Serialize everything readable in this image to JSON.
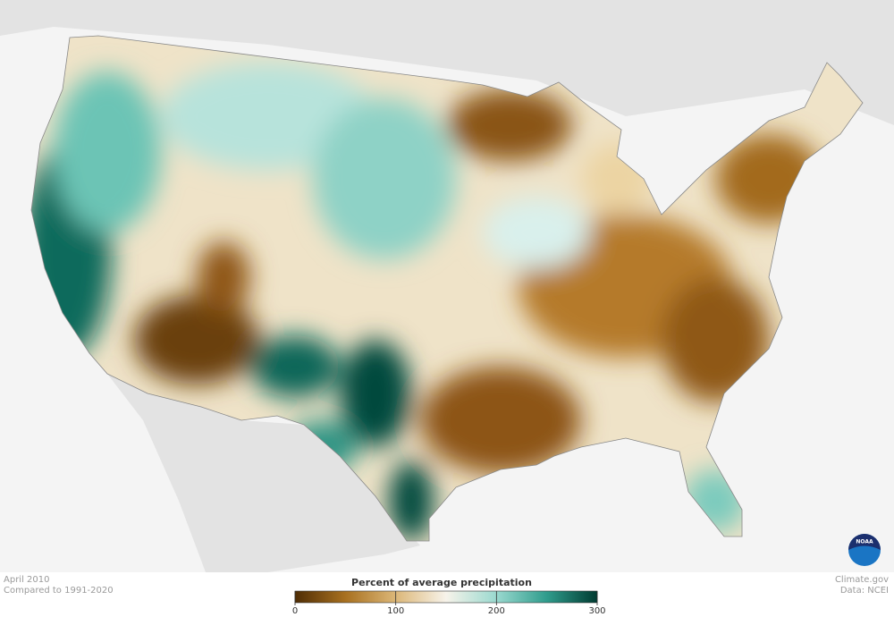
{
  "caption": {
    "date": "April 2010",
    "baseline": "Compared to 1991-2020"
  },
  "legend": {
    "title": "Percent of average precipitation",
    "range": [
      0,
      300
    ],
    "ticks": [
      0,
      100,
      200,
      300
    ],
    "colors": [
      "#4f2d05",
      "#a8701f",
      "#dcb778",
      "#f7f3ea",
      "#9ad9cf",
      "#2f9c8c",
      "#003b31"
    ]
  },
  "credits": {
    "site": "Climate.gov",
    "source": "Data: NCEI"
  },
  "logo": {
    "text": "NOAA"
  }
}
